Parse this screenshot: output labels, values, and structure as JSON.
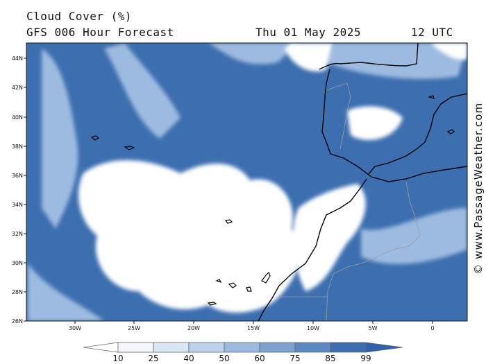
{
  "header": {
    "title": "Cloud Cover (%)",
    "subtitle": "GFS 006 Hour Forecast",
    "date": "Thu 01 May 2025",
    "time": "12 UTC"
  },
  "credit": "© www.PassageWeather.com",
  "map": {
    "lat_labels": [
      "44N",
      "42N",
      "40N",
      "38N",
      "36N",
      "34N",
      "32N",
      "30N",
      "28N",
      "26N"
    ],
    "lon_labels": [
      "30W",
      "25W",
      "20W",
      "15W",
      "10W",
      "5W",
      "0"
    ],
    "colors": {
      "ocean_background": "#3d6fb0",
      "cloud_low": "#ffffff",
      "cloud_mid": "#9dbbe0",
      "coastline": "#000000",
      "border": "#9a9a9a"
    }
  },
  "colorbar": {
    "labels": [
      "10",
      "25",
      "40",
      "50",
      "60",
      "75",
      "85",
      "99"
    ],
    "colors": [
      "#ffffff",
      "#f3f7fc",
      "#dbe6f4",
      "#bcd1ea",
      "#9dbbe0",
      "#7ca2d2",
      "#5b89c4",
      "#3d6fb0",
      "#2f62a8"
    ]
  }
}
